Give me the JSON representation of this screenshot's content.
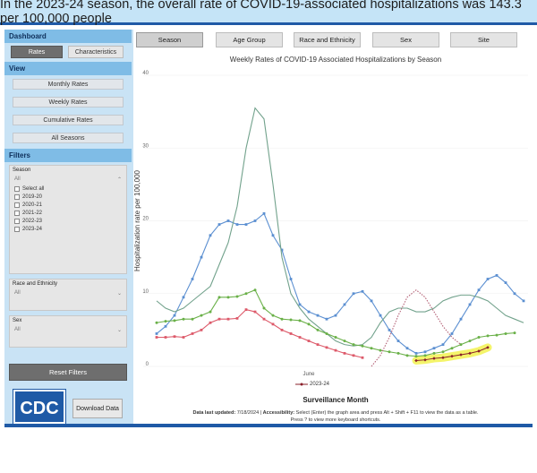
{
  "header": {
    "title": "In the 2023-24 season, the overall rate of COVID-19-associated hospitalizations was 143.3 per 100,000 people"
  },
  "sidebar": {
    "dashboard": {
      "label": "Dashboard",
      "rates": "Rates",
      "characteristics": "Characteristics"
    },
    "view": {
      "label": "View",
      "items": [
        "Monthly Rates",
        "Weekly Rates",
        "Cumulative Rates",
        "All Seasons"
      ]
    },
    "filters": {
      "label": "Filters",
      "season": {
        "label": "Season",
        "value": "All",
        "options": [
          "Select all",
          "2019-20",
          "2020-21",
          "2021-22",
          "2022-23",
          "2023-24"
        ]
      },
      "race": {
        "label": "Race and Ethnicity",
        "value": "All"
      },
      "sex": {
        "label": "Sex",
        "value": "All"
      }
    },
    "reset": "Reset Filters",
    "logo_text": "CDC",
    "download": "Download Data"
  },
  "tabs": [
    "Season",
    "Age Group",
    "Race and Ethnicity",
    "Sex",
    "Site"
  ],
  "active_tab": "Season",
  "footer": {
    "updated_label": "Data last updated:",
    "updated_value": "7/18/2024",
    "accessibility_label": "Accessibility:",
    "accessibility_text": "Select (Enter) the graph area and press Alt + Shift + F11 to view the data as a table.",
    "line2": "Press ? to view more keyboard shortcuts."
  },
  "chart_data": {
    "type": "line",
    "title": "Weekly Rates of COVID-19 Associated Hospitalizations by Season",
    "xlabel": "Surveillance Month",
    "ylabel": "Hospitalization rate per 100,000",
    "ylim": [
      0,
      40
    ],
    "yticks": [
      0,
      10,
      20,
      30,
      40
    ],
    "x_tick_labels": [
      {
        "week": 17,
        "label": "June"
      }
    ],
    "legend": [
      "2023-24"
    ],
    "legend_position": "bottom",
    "highlight_series": "2023-24",
    "series": [
      {
        "color": "#5b8fd1",
        "marker": "square",
        "values": [
          4.5,
          5.5,
          7,
          9.5,
          12,
          15,
          18,
          19.5,
          20,
          19.5,
          19.5,
          20,
          21,
          18,
          16,
          12,
          8.5,
          7.5,
          7,
          6.5,
          7,
          8.5,
          10,
          10.3,
          9,
          7,
          5,
          3.5,
          2.5,
          1.8,
          2,
          2.5,
          3,
          4.5,
          6.5,
          8.5,
          10.5,
          12,
          12.5,
          11.5,
          10,
          9
        ]
      },
      {
        "color": "#72a28c",
        "values": [
          9,
          8,
          7.5,
          8,
          9,
          10,
          11,
          14,
          17,
          22,
          30,
          35.5,
          34,
          25,
          15,
          10,
          8,
          6.5,
          5.5,
          4.5,
          3.5,
          3,
          2.8,
          3,
          4,
          6,
          7.5,
          8,
          8,
          7.5,
          7.5,
          8,
          9,
          9.5,
          9.8,
          9.8,
          9.5,
          9,
          8,
          7,
          6.5,
          6
        ]
      },
      {
        "color": "#6ab048",
        "marker": "circle",
        "values": [
          6,
          6.2,
          6.3,
          6.5,
          6.5,
          7,
          7.5,
          9.5,
          9.5,
          9.6,
          10,
          10.5,
          8,
          7,
          6.5,
          6.4,
          6.3,
          5.8,
          5,
          4.5,
          4,
          3.5,
          3,
          2.8,
          2.5,
          2.2,
          2,
          1.8,
          1.5,
          1.4,
          1.5,
          1.8,
          2,
          2.5,
          3,
          3.5,
          4,
          4.2,
          4.3,
          4.5,
          4.6
        ]
      },
      {
        "color": "#dd5a6a",
        "marker": "square",
        "values": [
          4,
          4,
          4.1,
          4,
          4.5,
          5,
          6,
          6.5,
          6.5,
          6.6,
          7.8,
          7.5,
          6.5,
          5.8,
          5,
          4.5,
          4,
          3.5,
          3,
          2.6,
          2.2,
          1.8,
          1.5,
          1.2
        ]
      },
      {
        "color": "#b36075",
        "dashed": true,
        "offset": 24,
        "values": [
          0,
          1.5,
          4,
          7,
          9.5,
          10.5,
          9.5,
          7.5,
          5.5,
          4,
          3
        ]
      },
      {
        "name": "2023-24",
        "color": "#8a1f2a",
        "marker": "diamond",
        "offset": 29,
        "values": [
          0.8,
          0.9,
          1.1,
          1.2,
          1.4,
          1.6,
          1.8,
          2.1,
          2.6
        ]
      }
    ]
  }
}
